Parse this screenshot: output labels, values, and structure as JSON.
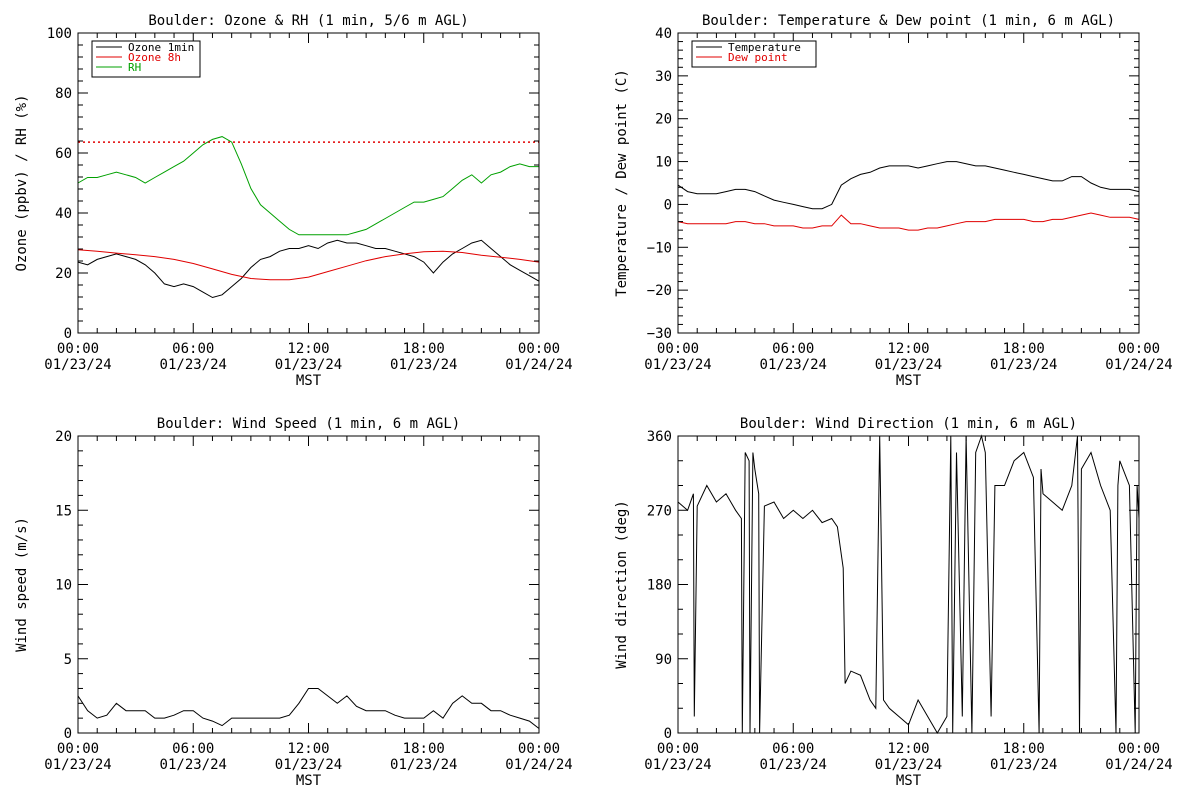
{
  "colors": {
    "black": "#000000",
    "red": "#e00000",
    "green": "#00a000",
    "background": "#ffffff"
  },
  "chart_data": [
    {
      "type": "line",
      "title": "Boulder: Ozone & RH (1 min, 5/6 m AGL)",
      "xlabel": "MST",
      "ylabel": "Ozone (ppbv) / RH (%)",
      "x_unit": "hours since 01/23/24 00:00",
      "xlim": [
        0,
        24
      ],
      "ylim": [
        0,
        110
      ],
      "x_ticks": [
        {
          "t1": "00:00",
          "t2": "01/23/24"
        },
        {
          "t1": "06:00",
          "t2": "01/23/24"
        },
        {
          "t1": "12:00",
          "t2": "01/23/24"
        },
        {
          "t1": "18:00",
          "t2": "01/23/24"
        },
        {
          "t1": "00:00",
          "t2": "01/24/24"
        }
      ],
      "y_ticks": [
        "0",
        "20",
        "40",
        "60",
        "80",
        "100"
      ],
      "legend": "top-left",
      "series": [
        {
          "name": "Ozone 1min",
          "color": "#000000",
          "x": [
            0,
            0.5,
            1,
            1.5,
            2,
            2.5,
            3,
            3.5,
            4,
            4.5,
            5,
            5.5,
            6,
            6.5,
            7,
            7.5,
            8,
            8.5,
            9,
            9.5,
            10,
            10.5,
            11,
            11.5,
            12,
            12.5,
            13,
            13.5,
            14,
            14.5,
            15,
            15.5,
            16,
            16.5,
            17,
            17.5,
            18,
            18.5,
            19,
            19.5,
            20,
            20.5,
            21,
            21.5,
            22,
            22.5,
            23,
            23.5,
            24
          ],
          "values": [
            26,
            25,
            27,
            28,
            29,
            28,
            27,
            25,
            22,
            18,
            17,
            18,
            17,
            15,
            13,
            14,
            17,
            20,
            24,
            27,
            28,
            30,
            31,
            31,
            32,
            31,
            33,
            34,
            33,
            33,
            32,
            31,
            31,
            30,
            29,
            28,
            26,
            22,
            26,
            29,
            31,
            33,
            34,
            31,
            28,
            25,
            23,
            21,
            19
          ]
        },
        {
          "name": "Ozone 8h",
          "color": "#e00000",
          "x": [
            0,
            1,
            2,
            3,
            4,
            5,
            6,
            7,
            8,
            9,
            10,
            11,
            12,
            13,
            14,
            15,
            16,
            17,
            18,
            19,
            20,
            21,
            22,
            23,
            24
          ],
          "values": [
            30.5,
            30,
            29.3,
            28.7,
            28,
            27,
            25.5,
            23.5,
            21.5,
            20,
            19.5,
            19.5,
            20.5,
            22.5,
            24.5,
            26.5,
            28,
            29,
            29.8,
            30,
            29.5,
            28.5,
            27.8,
            27,
            26
          ]
        },
        {
          "name": "RH",
          "color": "#00a000",
          "x": [
            0,
            0.5,
            1,
            1.5,
            2,
            2.5,
            3,
            3.5,
            4,
            4.5,
            5,
            5.5,
            6,
            6.5,
            7,
            7.5,
            8,
            8.5,
            9,
            9.5,
            10,
            10.5,
            11,
            11.5,
            12,
            12.5,
            13,
            13.5,
            14,
            14.5,
            15,
            15.5,
            16,
            16.5,
            17,
            17.5,
            18,
            18.5,
            19,
            19.5,
            20,
            20.5,
            21,
            21.5,
            22,
            22.5,
            23,
            23.5,
            24
          ],
          "values": [
            55,
            57,
            57,
            58,
            59,
            58,
            57,
            55,
            57,
            59,
            61,
            63,
            66,
            69,
            71,
            72,
            70,
            62,
            53,
            47,
            44,
            41,
            38,
            36,
            36,
            36,
            36,
            36,
            36,
            37,
            38,
            40,
            42,
            44,
            46,
            48,
            48,
            49,
            50,
            53,
            56,
            58,
            55,
            58,
            59,
            61,
            62,
            61,
            61
          ]
        }
      ],
      "reference_line": {
        "y": 70,
        "color": "#e00000",
        "style": "dotted"
      }
    },
    {
      "type": "line",
      "title": "Boulder: Temperature & Dew point (1 min, 6 m AGL)",
      "xlabel": "MST",
      "ylabel": "Temperature / Dew point (C)",
      "x_unit": "hours since 01/23/24 00:00",
      "xlim": [
        0,
        24
      ],
      "ylim": [
        -30,
        40
      ],
      "x_ticks": [
        {
          "t1": "00:00",
          "t2": "01/23/24"
        },
        {
          "t1": "06:00",
          "t2": "01/23/24"
        },
        {
          "t1": "12:00",
          "t2": "01/23/24"
        },
        {
          "t1": "18:00",
          "t2": "01/23/24"
        },
        {
          "t1": "00:00",
          "t2": "01/24/24"
        }
      ],
      "y_ticks": [
        "−30",
        "−20",
        "−10",
        "0",
        "10",
        "20",
        "30",
        "40"
      ],
      "legend": "top-left",
      "series": [
        {
          "name": "Temperature",
          "color": "#000000",
          "x": [
            0,
            0.5,
            1,
            1.5,
            2,
            2.5,
            3,
            3.5,
            4,
            4.5,
            5,
            5.5,
            6,
            6.5,
            7,
            7.5,
            8,
            8.5,
            9,
            9.5,
            10,
            10.5,
            11,
            11.5,
            12,
            12.5,
            13,
            13.5,
            14,
            14.5,
            15,
            15.5,
            16,
            16.5,
            17,
            17.5,
            18,
            18.5,
            19,
            19.5,
            20,
            20.5,
            21,
            21.5,
            22,
            22.5,
            23,
            23.5,
            24
          ],
          "values": [
            4.5,
            3,
            2.5,
            2.5,
            2.5,
            3,
            3.5,
            3.5,
            3,
            2,
            1,
            0.5,
            0,
            -0.5,
            -1,
            -1,
            0,
            4.5,
            6,
            7,
            7.5,
            8.5,
            9,
            9,
            9,
            8.5,
            9,
            9.5,
            10,
            10,
            9.5,
            9,
            9,
            8.5,
            8,
            7.5,
            7,
            6.5,
            6,
            5.5,
            5.5,
            6.5,
            6.5,
            5,
            4,
            3.5,
            3.5,
            3.5,
            3
          ]
        },
        {
          "name": "Dew point",
          "color": "#e00000",
          "x": [
            0,
            0.5,
            1,
            1.5,
            2,
            2.5,
            3,
            3.5,
            4,
            4.5,
            5,
            5.5,
            6,
            6.5,
            7,
            7.5,
            8,
            8.5,
            9,
            9.5,
            10,
            10.5,
            11,
            11.5,
            12,
            12.5,
            13,
            13.5,
            14,
            14.5,
            15,
            15.5,
            16,
            16.5,
            17,
            17.5,
            18,
            18.5,
            19,
            19.5,
            20,
            20.5,
            21,
            21.5,
            22,
            22.5,
            23,
            23.5,
            24
          ],
          "values": [
            -4,
            -4.5,
            -4.5,
            -4.5,
            -4.5,
            -4.5,
            -4,
            -4,
            -4.5,
            -4.5,
            -5,
            -5,
            -5,
            -5.5,
            -5.5,
            -5,
            -5,
            -2.5,
            -4.5,
            -4.5,
            -5,
            -5.5,
            -5.5,
            -5.5,
            -6,
            -6,
            -5.5,
            -5.5,
            -5,
            -4.5,
            -4,
            -4,
            -4,
            -3.5,
            -3.5,
            -3.5,
            -3.5,
            -4,
            -4,
            -3.5,
            -3.5,
            -3,
            -2.5,
            -2,
            -2.5,
            -3,
            -3,
            -3,
            -3.5
          ]
        }
      ]
    },
    {
      "type": "line",
      "title": "Boulder: Wind Speed (1 min, 6 m AGL)",
      "xlabel": "MST",
      "ylabel": "Wind speed (m/s)",
      "x_unit": "hours since 01/23/24 00:00",
      "xlim": [
        0,
        24
      ],
      "ylim": [
        0,
        20
      ],
      "x_ticks": [
        {
          "t1": "00:00",
          "t2": "01/23/24"
        },
        {
          "t1": "06:00",
          "t2": "01/23/24"
        },
        {
          "t1": "12:00",
          "t2": "01/23/24"
        },
        {
          "t1": "18:00",
          "t2": "01/23/24"
        },
        {
          "t1": "00:00",
          "t2": "01/24/24"
        }
      ],
      "y_ticks": [
        "0",
        "5",
        "10",
        "15",
        "20"
      ],
      "series": [
        {
          "name": "",
          "color": "#000000",
          "x": [
            0,
            0.5,
            1,
            1.5,
            2,
            2.5,
            3,
            3.5,
            4,
            4.5,
            5,
            5.5,
            6,
            6.5,
            7,
            7.5,
            8,
            8.5,
            9,
            9.5,
            10,
            10.5,
            11,
            11.5,
            12,
            12.5,
            13,
            13.5,
            14,
            14.5,
            15,
            15.5,
            16,
            16.5,
            17,
            17.5,
            18,
            18.5,
            19,
            19.5,
            20,
            20.5,
            21,
            21.5,
            22,
            22.5,
            23,
            23.5,
            24
          ],
          "values": [
            2.5,
            1.5,
            1,
            1.2,
            2,
            1.5,
            1.5,
            1.5,
            1,
            1,
            1.2,
            1.5,
            1.5,
            1,
            0.8,
            0.5,
            1,
            1,
            1,
            1,
            1,
            1,
            1.2,
            2,
            3,
            3,
            2.5,
            2,
            2.5,
            1.8,
            1.5,
            1.5,
            1.5,
            1.2,
            1,
            1,
            1,
            1.5,
            1,
            2,
            2.5,
            2,
            2,
            1.5,
            1.5,
            1.2,
            1,
            0.8,
            0.3
          ]
        }
      ]
    },
    {
      "type": "line",
      "title": "Boulder: Wind Direction (1 min, 6 m AGL)",
      "xlabel": "MST",
      "ylabel": "Wind direction (deg)",
      "x_unit": "hours since 01/23/24 00:00",
      "xlim": [
        0,
        24
      ],
      "ylim": [
        0,
        360
      ],
      "x_ticks": [
        {
          "t1": "00:00",
          "t2": "01/23/24"
        },
        {
          "t1": "06:00",
          "t2": "01/23/24"
        },
        {
          "t1": "12:00",
          "t2": "01/23/24"
        },
        {
          "t1": "18:00",
          "t2": "01/23/24"
        },
        {
          "t1": "00:00",
          "t2": "01/24/24"
        }
      ],
      "y_ticks": [
        "0",
        "90",
        "180",
        "270",
        "360"
      ],
      "series": [
        {
          "name": "",
          "color": "#000000",
          "x": [
            0,
            0.5,
            0.8,
            0.85,
            1,
            1.5,
            2,
            2.5,
            3,
            3.3,
            3.35,
            3.5,
            3.7,
            3.75,
            3.9,
            4,
            4.2,
            4.25,
            4.5,
            5,
            5.5,
            6,
            6.5,
            7,
            7.5,
            8,
            8.3,
            8.6,
            8.7,
            9,
            9.5,
            10,
            10.3,
            10.5,
            10.7,
            11,
            11.5,
            12,
            12.5,
            13,
            13.5,
            14,
            14.2,
            14.3,
            14.5,
            14.8,
            15,
            15.3,
            15.5,
            15.8,
            16,
            16.3,
            16.5,
            17,
            17.5,
            18,
            18.5,
            18.8,
            18.9,
            19,
            19.5,
            20,
            20.5,
            20.8,
            20.9,
            21,
            21.5,
            22,
            22.5,
            22.8,
            22.9,
            23,
            23.5,
            23.8,
            23.9,
            24
          ],
          "values": [
            280,
            270,
            290,
            20,
            275,
            300,
            280,
            290,
            270,
            260,
            0,
            340,
            330,
            0,
            340,
            320,
            290,
            0,
            275,
            280,
            260,
            270,
            260,
            270,
            255,
            260,
            250,
            200,
            60,
            75,
            70,
            40,
            30,
            360,
            40,
            30,
            20,
            10,
            40,
            20,
            0,
            20,
            360,
            0,
            340,
            20,
            360,
            0,
            340,
            360,
            340,
            20,
            300,
            300,
            330,
            340,
            310,
            0,
            320,
            290,
            280,
            270,
            300,
            360,
            0,
            320,
            340,
            300,
            270,
            0,
            300,
            330,
            300,
            0,
            300,
            260
          ]
        }
      ]
    }
  ]
}
